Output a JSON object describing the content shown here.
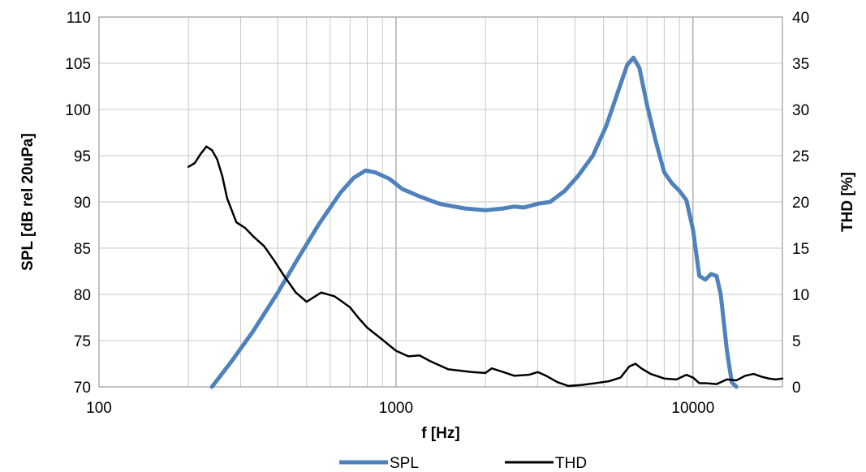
{
  "chart_data": {
    "type": "line",
    "xlabel": "f [Hz]",
    "ylabel_left": "SPL [dB rel 20uPa]",
    "ylabel_right": "THD [%]",
    "x_scale": "log",
    "xlim": [
      100,
      20000
    ],
    "x_ticks": [
      100,
      1000,
      10000
    ],
    "x_tick_labels": [
      "100",
      "1000",
      "10000"
    ],
    "ylim_left": [
      70,
      110
    ],
    "y_ticks_left": [
      70,
      75,
      80,
      85,
      90,
      95,
      100,
      105,
      110
    ],
    "y_tick_labels_left": [
      "70",
      "75",
      "80",
      "85",
      "90",
      "95",
      "100",
      "105",
      "110"
    ],
    "ylim_right": [
      0,
      40
    ],
    "y_ticks_right": [
      0,
      5,
      10,
      15,
      20,
      25,
      30,
      35,
      40
    ],
    "y_tick_labels_right": [
      "0",
      "5",
      "10",
      "15",
      "20",
      "25",
      "30",
      "35",
      "40"
    ],
    "grid": true,
    "legend_position": "bottom",
    "series": [
      {
        "name": "SPL",
        "axis": "left",
        "color": "#4f81bd",
        "x": [
          240,
          280,
          330,
          400,
          470,
          550,
          650,
          720,
          790,
          850,
          950,
          1050,
          1200,
          1400,
          1700,
          2000,
          2300,
          2500,
          2700,
          3000,
          3300,
          3700,
          4100,
          4600,
          5100,
          5600,
          6000,
          6300,
          6600,
          7000,
          7500,
          8000,
          8500,
          9000,
          9500,
          10000,
          10500,
          11000,
          11500,
          12000,
          12400,
          13000,
          13500,
          14000
        ],
        "y": [
          70,
          72.8,
          76,
          80.2,
          84,
          87.6,
          91,
          92.6,
          93.4,
          93.2,
          92.5,
          91.4,
          90.6,
          89.8,
          89.3,
          89.1,
          89.3,
          89.5,
          89.4,
          89.8,
          90,
          91.2,
          92.8,
          95,
          98.2,
          102,
          104.8,
          105.6,
          104.5,
          100.5,
          96.5,
          93.2,
          92,
          91.2,
          90.2,
          87,
          82,
          81.6,
          82.2,
          82,
          80,
          74,
          70.5,
          70
        ]
      },
      {
        "name": "THD",
        "axis": "right",
        "color": "#000000",
        "x": [
          200,
          210,
          220,
          230,
          240,
          250,
          260,
          270,
          290,
          310,
          330,
          360,
          390,
          420,
          460,
          500,
          560,
          620,
          660,
          700,
          750,
          800,
          900,
          1000,
          1100,
          1200,
          1300,
          1500,
          1800,
          2000,
          2100,
          2300,
          2500,
          2800,
          3000,
          3200,
          3500,
          3800,
          4200,
          4700,
          5200,
          5700,
          6100,
          6400,
          6700,
          7200,
          8000,
          8800,
          9500,
          10000,
          10500,
          11000,
          12000,
          13000,
          14000,
          15000,
          16000,
          17000,
          18000,
          19000,
          20000
        ],
        "y": [
          23.8,
          24.2,
          25.2,
          26,
          25.6,
          24.6,
          22.8,
          20.4,
          17.8,
          17.2,
          16.3,
          15.2,
          13.6,
          12,
          10.2,
          9.2,
          10.2,
          9.8,
          9.2,
          8.6,
          7.4,
          6.4,
          5.1,
          3.9,
          3.3,
          3.4,
          2.8,
          1.9,
          1.6,
          1.5,
          2,
          1.6,
          1.2,
          1.3,
          1.6,
          1.2,
          0.5,
          0.1,
          0.2,
          0.4,
          0.6,
          1,
          2.2,
          2.5,
          2,
          1.4,
          0.9,
          0.8,
          1.3,
          1,
          0.4,
          0.4,
          0.3,
          0.8,
          0.7,
          1.2,
          1.4,
          1.1,
          0.9,
          0.8,
          0.9
        ]
      }
    ]
  }
}
